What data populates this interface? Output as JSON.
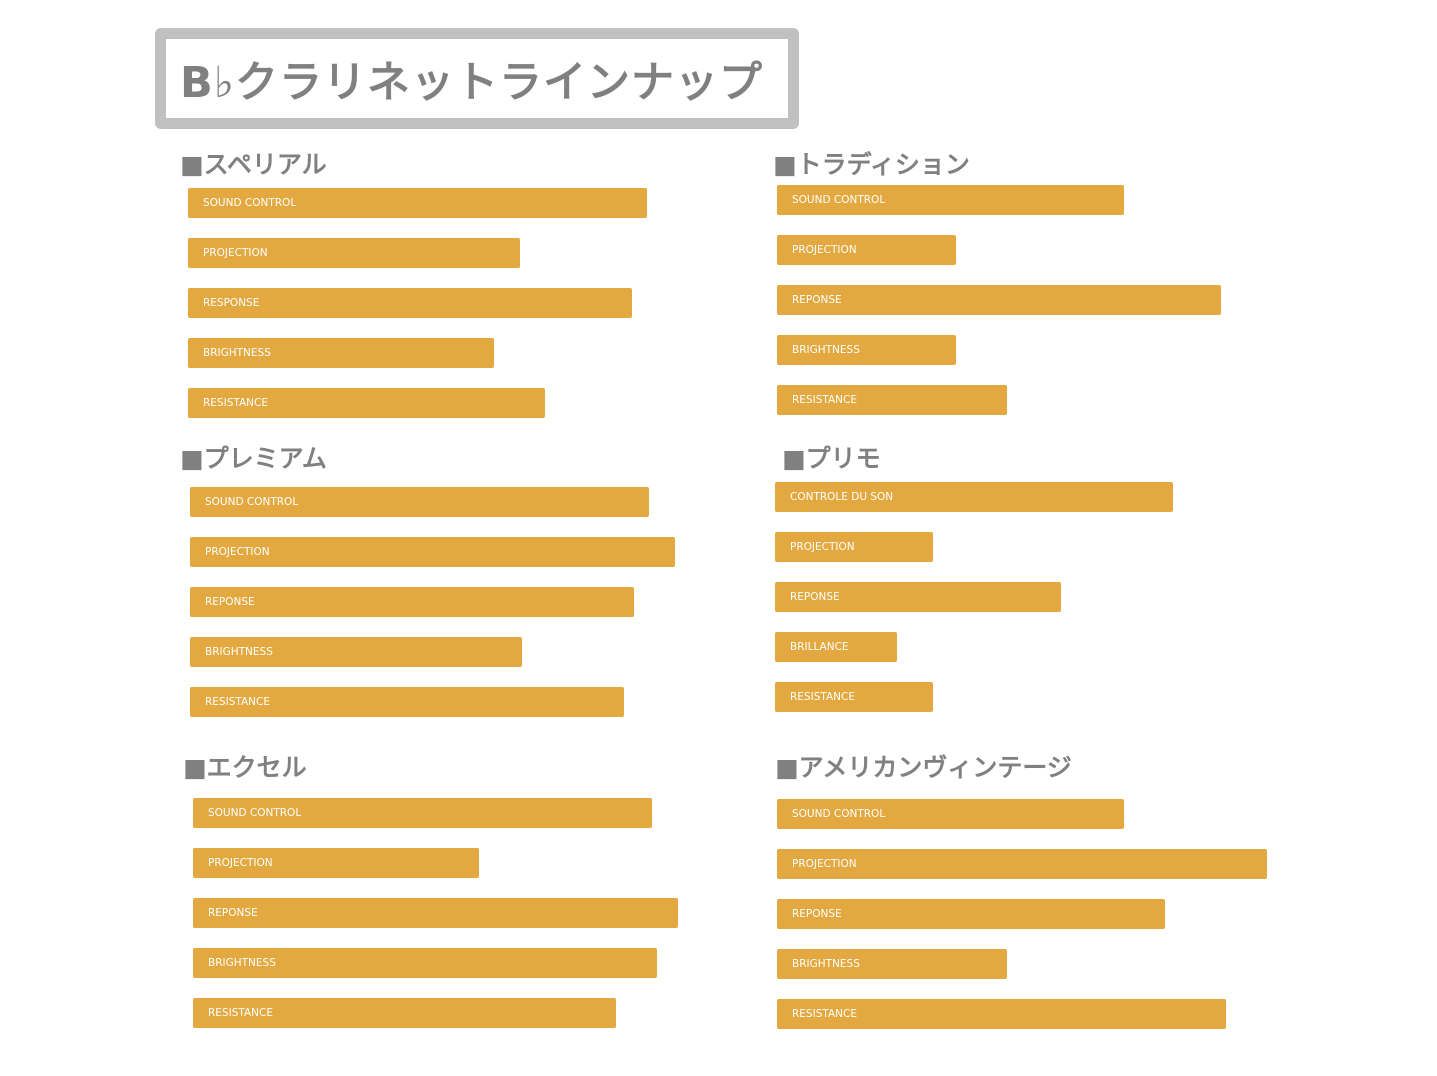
{
  "title": "B♭クラリネットラインナップ",
  "bar_color": "#E3A940",
  "heading_color": "#808080",
  "chart_data": [
    {
      "type": "bar",
      "orientation": "horizontal",
      "title": "■スペリアル",
      "categories": [
        "SOUND CONTROL",
        "PROJECTION",
        "RESPONSE",
        "BRIGHTNESS",
        "RESISTANCE"
      ],
      "values": [
        90,
        65,
        87,
        60,
        70
      ]
    },
    {
      "type": "bar",
      "orientation": "horizontal",
      "title": "■トラディション",
      "categories": [
        "SOUND CONTROL",
        "PROJECTION",
        "REPONSE",
        "BRIGHTNESS",
        "RESISTANCE"
      ],
      "values": [
        68,
        35,
        87,
        35,
        45
      ]
    },
    {
      "type": "bar",
      "orientation": "horizontal",
      "title": "■プレミアム",
      "categories": [
        "SOUND CONTROL",
        "PROJECTION",
        "REPONSE",
        "BRIGHTNESS",
        "RESISTANCE"
      ],
      "values": [
        90,
        95,
        87,
        65,
        85
      ]
    },
    {
      "type": "bar",
      "orientation": "horizontal",
      "title": "■プリモ",
      "categories": [
        "CONTROLE DU SON",
        "PROJECTION",
        "REPONSE",
        "BRILLANCE",
        "RESISTANCE"
      ],
      "values": [
        78,
        31,
        56,
        24,
        31
      ]
    },
    {
      "type": "bar",
      "orientation": "horizontal",
      "title": "■エクセル",
      "categories": [
        "SOUND CONTROL",
        "PROJECTION",
        "REPONSE",
        "BRIGHTNESS",
        "RESISTANCE"
      ],
      "values": [
        90,
        56,
        95,
        91,
        83
      ]
    },
    {
      "type": "bar",
      "orientation": "horizontal",
      "title": "■アメリカンヴィンテージ",
      "categories": [
        "SOUND CONTROL",
        "PROJECTION",
        "REPONSE",
        "BRIGHTNESS",
        "RESISTANCE"
      ],
      "values": [
        68,
        96,
        76,
        45,
        88
      ]
    }
  ]
}
